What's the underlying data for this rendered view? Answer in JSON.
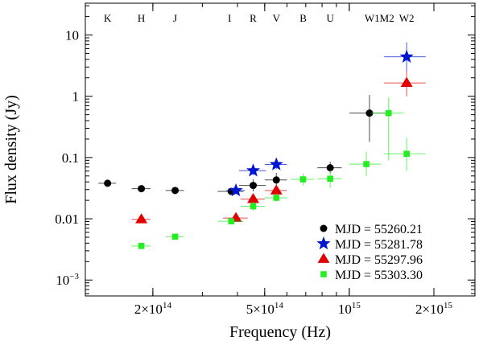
{
  "chart_data": {
    "type": "scatter",
    "title": "",
    "xlabel": "Frequency (Hz)",
    "ylabel": "Flux density (Jy)",
    "x_scale": "log",
    "y_scale": "log",
    "xlim": [
      115000000000000.0,
      2800000000000000.0
    ],
    "ylim": [
      0.00055,
      33
    ],
    "grid": false,
    "legend_position": "lower-right",
    "x_tick_labels": [
      {
        "value": 200000000000000.0,
        "label": "2×10",
        "exp": "14"
      },
      {
        "value": 500000000000000.0,
        "label": "5×10",
        "exp": "14"
      },
      {
        "value": 1000000000000000.0,
        "label": "10",
        "exp": "15"
      },
      {
        "value": 2000000000000000.0,
        "label": "2×10",
        "exp": "15"
      }
    ],
    "y_tick_labels": [
      {
        "value": 0.001,
        "label": "10",
        "exp": "−3"
      },
      {
        "value": 0.01,
        "label": "0.01",
        "exp": ""
      },
      {
        "value": 0.1,
        "label": "0.1",
        "exp": ""
      },
      {
        "value": 1,
        "label": "1",
        "exp": ""
      },
      {
        "value": 10,
        "label": "10",
        "exp": ""
      }
    ],
    "bands": [
      {
        "name": "K",
        "freq": 138000000000000.0
      },
      {
        "name": "H",
        "freq": 182000000000000.0
      },
      {
        "name": "J",
        "freq": 240000000000000.0
      },
      {
        "name": "I",
        "freq": 375000000000000.0
      },
      {
        "name": "R",
        "freq": 455000000000000.0
      },
      {
        "name": "V",
        "freq": 550000000000000.0
      },
      {
        "name": "B",
        "freq": 685000000000000.0
      },
      {
        "name": "U",
        "freq": 855000000000000.0
      },
      {
        "name": "W1M2",
        "freq": 1280000000000000.0
      },
      {
        "name": "W2",
        "freq": 1600000000000000.0
      }
    ],
    "series": [
      {
        "name": "MJD = 55260.21",
        "marker": "circle",
        "color": "#000000",
        "points": [
          {
            "x": 138000000000000.0,
            "y": 0.038,
            "xerr": [
              128000000000000.0,
              148000000000000.0
            ],
            "yerr": [
              0.036,
              0.04
            ]
          },
          {
            "x": 182000000000000.0,
            "y": 0.031,
            "xerr": [
              168000000000000.0,
              196000000000000.0
            ],
            "yerr": [
              0.029,
              0.033
            ]
          },
          {
            "x": 240000000000000.0,
            "y": 0.029,
            "xerr": [
              222000000000000.0,
              258000000000000.0
            ],
            "yerr": [
              0.027,
              0.031
            ]
          },
          {
            "x": 380000000000000.0,
            "y": 0.028,
            "xerr": [
              340000000000000.0,
              420000000000000.0
            ],
            "yerr": [
              0.026,
              0.03
            ]
          },
          {
            "x": 455000000000000.0,
            "y": 0.035,
            "xerr": [
              405000000000000.0,
              505000000000000.0
            ],
            "yerr": [
              0.028,
              0.044
            ]
          },
          {
            "x": 550000000000000.0,
            "y": 0.043,
            "xerr": [
              500000000000000.0,
              600000000000000.0
            ],
            "yerr": [
              0.033,
              0.056
            ]
          },
          {
            "x": 855000000000000.0,
            "y": 0.068,
            "xerr": [
              770000000000000.0,
              940000000000000.0
            ],
            "yerr": [
              0.055,
              0.085
            ]
          },
          {
            "x": 1180000000000000.0,
            "y": 0.53,
            "xerr": [
              1000000000000000.0,
              1360000000000000.0
            ],
            "yerr": [
              0.18,
              1.05
            ]
          }
        ]
      },
      {
        "name": "MJD = 55281.78",
        "marker": "star",
        "color": "#0015d0",
        "points": [
          {
            "x": 395000000000000.0,
            "y": 0.029,
            "xerr": [
              365000000000000.0,
              425000000000000.0
            ],
            "yerr": [
              0.025,
              0.033
            ]
          },
          {
            "x": 455000000000000.0,
            "y": 0.061,
            "xerr": [
              405000000000000.0,
              505000000000000.0
            ],
            "yerr": [
              0.052,
              0.071
            ]
          },
          {
            "x": 550000000000000.0,
            "y": 0.077,
            "xerr": [
              500000000000000.0,
              600000000000000.0
            ],
            "yerr": [
              0.065,
              0.09
            ]
          },
          {
            "x": 1600000000000000.0,
            "y": 4.4,
            "xerr": [
              1330000000000000.0,
              1870000000000000.0
            ],
            "yerr": [
              2.6,
              7.6
            ]
          }
        ]
      },
      {
        "name": "MJD = 55297.96",
        "marker": "triangle",
        "color": "#e00000",
        "points": [
          {
            "x": 182000000000000.0,
            "y": 0.0098,
            "xerr": [
              168000000000000.0,
              196000000000000.0
            ],
            "yerr": [
              0.0088,
              0.0108
            ]
          },
          {
            "x": 395000000000000.0,
            "y": 0.0103,
            "xerr": [
              355000000000000.0,
              435000000000000.0
            ],
            "yerr": [
              0.009,
              0.0118
            ]
          },
          {
            "x": 455000000000000.0,
            "y": 0.021,
            "xerr": [
              410000000000000.0,
              500000000000000.0
            ],
            "yerr": [
              0.0175,
              0.025
            ]
          },
          {
            "x": 550000000000000.0,
            "y": 0.029,
            "xerr": [
              500000000000000.0,
              600000000000000.0
            ],
            "yerr": [
              0.024,
              0.035
            ]
          },
          {
            "x": 1600000000000000.0,
            "y": 1.65,
            "xerr": [
              1330000000000000.0,
              1870000000000000.0
            ],
            "yerr": [
              1.0,
              2.6
            ]
          }
        ]
      },
      {
        "name": "MJD = 55303.30",
        "marker": "square",
        "color": "#22ee22",
        "points": [
          {
            "x": 182000000000000.0,
            "y": 0.0036,
            "xerr": [
              168000000000000.0,
              196000000000000.0
            ],
            "yerr": [
              0.0033,
              0.004
            ]
          },
          {
            "x": 240000000000000.0,
            "y": 0.0051,
            "xerr": [
              222000000000000.0,
              258000000000000.0
            ],
            "yerr": [
              0.0047,
              0.0055
            ]
          },
          {
            "x": 380000000000000.0,
            "y": 0.0091,
            "xerr": [
              340000000000000.0,
              420000000000000.0
            ],
            "yerr": [
              0.0083,
              0.01
            ]
          },
          {
            "x": 455000000000000.0,
            "y": 0.016,
            "xerr": [
              410000000000000.0,
              500000000000000.0
            ],
            "yerr": [
              0.0135,
              0.019
            ]
          },
          {
            "x": 550000000000000.0,
            "y": 0.022,
            "xerr": [
              500000000000000.0,
              600000000000000.0
            ],
            "yerr": [
              0.019,
              0.026
            ]
          },
          {
            "x": 685000000000000.0,
            "y": 0.044,
            "xerr": [
              620000000000000.0,
              750000000000000.0
            ],
            "yerr": [
              0.035,
              0.055
            ]
          },
          {
            "x": 855000000000000.0,
            "y": 0.045,
            "xerr": [
              770000000000000.0,
              940000000000000.0
            ],
            "yerr": [
              0.032,
              0.062
            ]
          },
          {
            "x": 1150000000000000.0,
            "y": 0.078,
            "xerr": [
              1000000000000000.0,
              1300000000000000.0
            ],
            "yerr": [
              0.05,
              0.125
            ]
          },
          {
            "x": 1380000000000000.0,
            "y": 0.53,
            "xerr": [
              1200000000000000.0,
              1560000000000000.0
            ],
            "yerr": [
              0.09,
              0.95
            ]
          },
          {
            "x": 1600000000000000.0,
            "y": 0.115,
            "xerr": [
              1330000000000000.0,
              1870000000000000.0
            ],
            "yerr": [
              0.06,
              0.21
            ]
          }
        ]
      }
    ]
  }
}
